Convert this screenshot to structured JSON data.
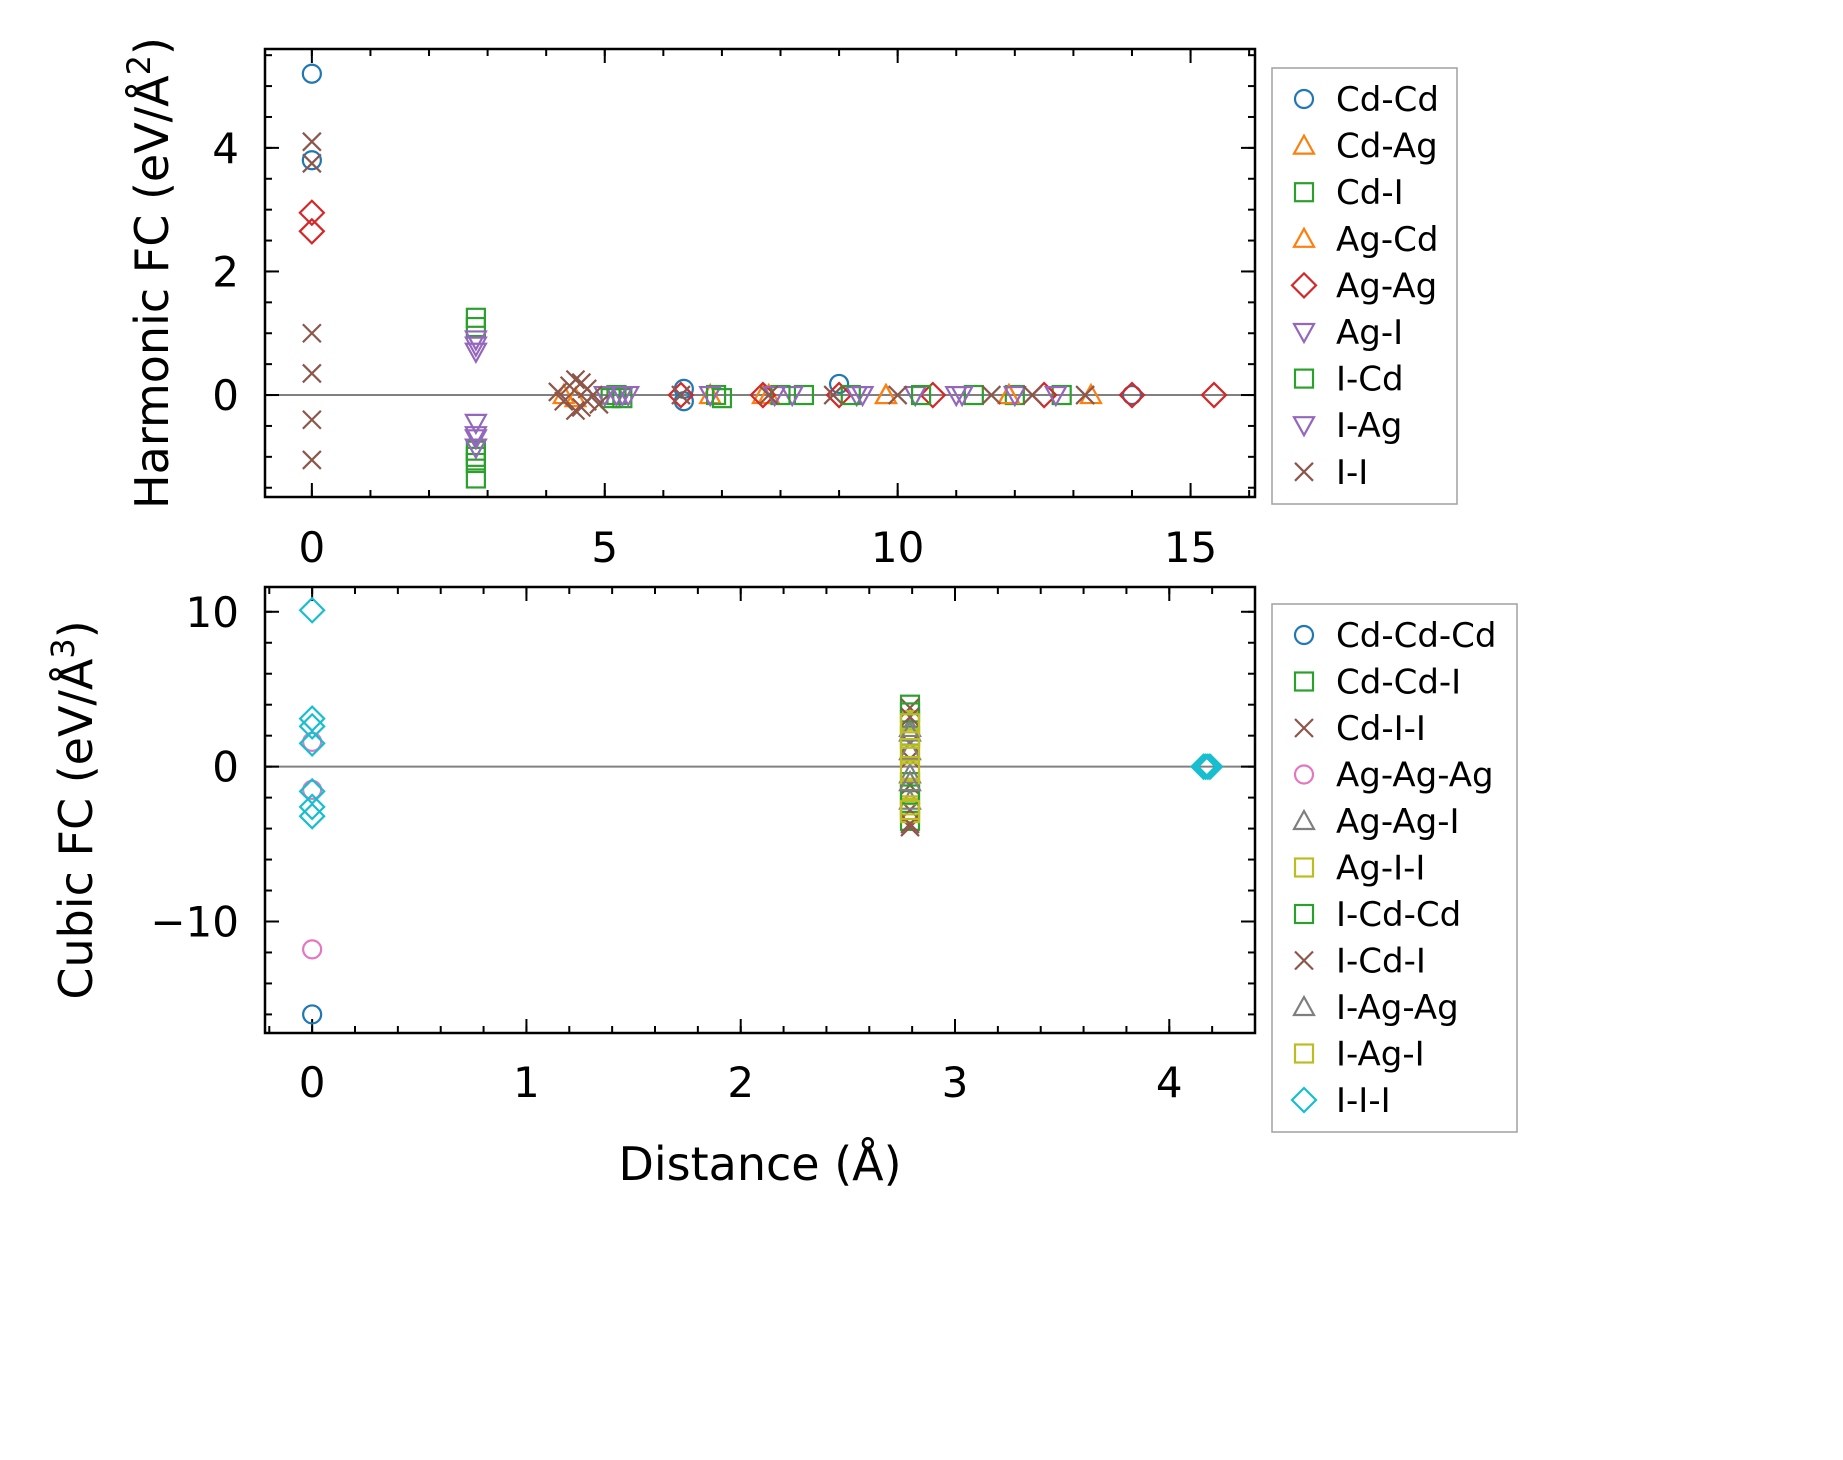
{
  "chart_data": [
    {
      "type": "scatter",
      "ylabel_main": "Harmonic FC (eV/Å",
      "ylabel_sup": "2",
      "ylabel_close": ")",
      "xlim": [
        -0.8,
        16.1
      ],
      "ylim": [
        -1.65,
        5.6
      ],
      "xticks": [
        0,
        5,
        10,
        15
      ],
      "xtick_labels": [
        "0",
        "5",
        "10",
        "15"
      ],
      "yticks": [
        0,
        2,
        4
      ],
      "ytick_labels": [
        "0",
        "2",
        "4"
      ],
      "legend_position": "outside-right-top",
      "zero_line": true,
      "series": [
        {
          "name": "Cd-Cd",
          "marker": "circle",
          "color": "#1f77b4",
          "points": [
            [
              0,
              5.2
            ],
            [
              0,
              3.8
            ],
            [
              6.35,
              0.1
            ],
            [
              6.35,
              -0.1
            ],
            [
              9.0,
              0.18
            ],
            [
              14.0,
              0.0
            ]
          ]
        },
        {
          "name": "Cd-Ag",
          "marker": "triangle-up",
          "color": "#ff7f0e",
          "points": [
            [
              4.3,
              0.0
            ],
            [
              6.8,
              0.0
            ],
            [
              7.8,
              0.0
            ],
            [
              9.8,
              0.0
            ],
            [
              11.9,
              0.0
            ],
            [
              13.3,
              0.0
            ]
          ]
        },
        {
          "name": "Cd-I",
          "marker": "square",
          "color": "#2ca02c",
          "points": [
            [
              2.8,
              1.25
            ],
            [
              2.8,
              1.1
            ],
            [
              2.8,
              -0.9
            ],
            [
              2.8,
              -1.1
            ],
            [
              2.8,
              -1.35
            ],
            [
              5.2,
              0.0
            ],
            [
              5.3,
              -0.05
            ],
            [
              6.9,
              0.0
            ],
            [
              8.4,
              0.0
            ],
            [
              11.3,
              0.0
            ],
            [
              12.0,
              0.0
            ],
            [
              12.8,
              0.0
            ]
          ]
        },
        {
          "name": "Ag-Cd",
          "marker": "triangle-up",
          "color": "#ff7f0e",
          "points": [
            [
              4.5,
              -0.05
            ],
            [
              7.7,
              0.0
            ],
            [
              9.8,
              0.0
            ],
            [
              11.9,
              0.0
            ]
          ]
        },
        {
          "name": "Ag-Ag",
          "marker": "diamond",
          "color": "#d62728",
          "points": [
            [
              0,
              2.95
            ],
            [
              0,
              2.65
            ],
            [
              6.3,
              0.0
            ],
            [
              7.7,
              0.0
            ],
            [
              9.0,
              0.0
            ],
            [
              10.6,
              0.0
            ],
            [
              12.5,
              0.0
            ],
            [
              14.0,
              0.0
            ],
            [
              15.4,
              0.0
            ]
          ]
        },
        {
          "name": "Ag-I",
          "marker": "triangle-down",
          "color": "#9467bd",
          "points": [
            [
              2.8,
              0.9
            ],
            [
              2.8,
              0.8
            ],
            [
              2.8,
              -0.45
            ],
            [
              2.8,
              -0.65
            ],
            [
              5.2,
              0.0
            ],
            [
              5.4,
              0.0
            ],
            [
              6.8,
              0.0
            ],
            [
              8.2,
              0.0
            ],
            [
              9.3,
              0.0
            ],
            [
              10.3,
              0.0
            ],
            [
              11.0,
              0.0
            ],
            [
              12.0,
              0.0
            ]
          ]
        },
        {
          "name": "I-Cd",
          "marker": "square",
          "color": "#2ca02c",
          "points": [
            [
              2.8,
              -1.0
            ],
            [
              5.1,
              -0.05
            ],
            [
              7.0,
              -0.05
            ],
            [
              8.0,
              0.0
            ],
            [
              9.2,
              0.0
            ],
            [
              10.4,
              0.0
            ]
          ]
        },
        {
          "name": "I-Ag",
          "marker": "triangle-down",
          "color": "#9467bd",
          "points": [
            [
              2.8,
              0.7
            ],
            [
              2.8,
              -0.7
            ],
            [
              2.8,
              -0.85
            ],
            [
              5.0,
              0.0
            ],
            [
              5.3,
              0.0
            ],
            [
              7.9,
              0.0
            ],
            [
              9.4,
              0.0
            ],
            [
              11.1,
              0.0
            ],
            [
              12.7,
              0.0
            ]
          ]
        },
        {
          "name": "I-I",
          "marker": "x",
          "color": "#8c564b",
          "points": [
            [
              0,
              4.1
            ],
            [
              0,
              3.75
            ],
            [
              0,
              1.0
            ],
            [
              0,
              0.35
            ],
            [
              0,
              -0.4
            ],
            [
              0,
              -1.05
            ],
            [
              4.2,
              0.05
            ],
            [
              4.3,
              -0.1
            ],
            [
              4.4,
              0.15
            ],
            [
              4.5,
              0.25
            ],
            [
              4.5,
              -0.25
            ],
            [
              4.6,
              0.2
            ],
            [
              4.6,
              -0.2
            ],
            [
              4.7,
              0.1
            ],
            [
              4.7,
              -0.1
            ],
            [
              4.8,
              0.0
            ],
            [
              4.9,
              -0.15
            ],
            [
              6.3,
              0.0
            ],
            [
              7.8,
              0.0
            ],
            [
              8.9,
              0.0
            ],
            [
              10.0,
              0.0
            ],
            [
              11.6,
              0.0
            ],
            [
              12.3,
              0.0
            ],
            [
              13.2,
              0.0
            ]
          ]
        }
      ]
    },
    {
      "type": "scatter",
      "xlabel": "Distance (Å)",
      "ylabel_main": "Cubic FC (eV/Å",
      "ylabel_sup": "3",
      "ylabel_close": ")",
      "xlim": [
        -0.22,
        4.4
      ],
      "ylim": [
        -17.2,
        11.6
      ],
      "xticks": [
        0,
        1,
        2,
        3,
        4
      ],
      "xtick_labels": [
        "0",
        "1",
        "2",
        "3",
        "4"
      ],
      "yticks": [
        10,
        0,
        -10
      ],
      "ytick_labels": [
        "10",
        "0",
        "−10"
      ],
      "legend_position": "outside-right-top",
      "zero_line": true,
      "series": [
        {
          "name": "Cd-Cd-Cd",
          "marker": "circle",
          "color": "#1f77b4",
          "points": [
            [
              0,
              -16.0
            ],
            [
              4.17,
              0.0
            ]
          ]
        },
        {
          "name": "Cd-Cd-I",
          "marker": "square",
          "color": "#2ca02c",
          "points": [
            [
              2.79,
              4.0
            ],
            [
              2.79,
              2.0
            ],
            [
              2.79,
              -1.0
            ],
            [
              2.79,
              -3.5
            ]
          ]
        },
        {
          "name": "Cd-I-I",
          "marker": "x",
          "color": "#8c564b",
          "points": [
            [
              2.79,
              3.8
            ],
            [
              2.79,
              1.5
            ],
            [
              2.79,
              0.5
            ],
            [
              2.79,
              -1.2
            ],
            [
              2.79,
              -2.8
            ],
            [
              2.79,
              -3.9
            ]
          ]
        },
        {
          "name": "Ag-Ag-Ag",
          "marker": "circle",
          "color": "#e377c2",
          "points": [
            [
              0,
              1.6
            ],
            [
              0,
              -1.5
            ],
            [
              0,
              -11.8
            ]
          ]
        },
        {
          "name": "Ag-Ag-I",
          "marker": "triangle-up",
          "color": "#7f7f7f",
          "points": [
            [
              2.79,
              2.5
            ],
            [
              2.79,
              1.0
            ],
            [
              2.79,
              -0.5
            ],
            [
              2.79,
              -2.2
            ]
          ]
        },
        {
          "name": "Ag-I-I",
          "marker": "square",
          "color": "#bcbd22",
          "points": [
            [
              2.79,
              3.0
            ],
            [
              2.79,
              1.8
            ],
            [
              2.79,
              0.8
            ],
            [
              2.79,
              -0.2
            ],
            [
              2.79,
              -1.5
            ],
            [
              2.79,
              -2.5
            ],
            [
              2.79,
              -3.0
            ]
          ]
        },
        {
          "name": "I-Cd-Cd",
          "marker": "square",
          "color": "#2ca02c",
          "points": [
            [
              2.79,
              3.5
            ],
            [
              2.79,
              -1.8
            ]
          ]
        },
        {
          "name": "I-Cd-I",
          "marker": "x",
          "color": "#8c564b",
          "points": [
            [
              2.79,
              3.2
            ],
            [
              2.79,
              -3.7
            ]
          ]
        },
        {
          "name": "I-Ag-Ag",
          "marker": "triangle-up",
          "color": "#7f7f7f",
          "points": [
            [
              2.79,
              2.2
            ],
            [
              2.79,
              -1.0
            ]
          ]
        },
        {
          "name": "I-Ag-I",
          "marker": "square",
          "color": "#bcbd22",
          "points": [
            [
              2.79,
              2.8
            ],
            [
              2.79,
              1.2
            ],
            [
              2.79,
              -2.8
            ]
          ]
        },
        {
          "name": "I-I-I",
          "marker": "diamond",
          "color": "#17becf",
          "points": [
            [
              0,
              10.1
            ],
            [
              0,
              3.1
            ],
            [
              0,
              2.6
            ],
            [
              0,
              1.5
            ],
            [
              0,
              -1.6
            ],
            [
              0,
              -2.6
            ],
            [
              0,
              -3.2
            ],
            [
              4.16,
              0.0
            ],
            [
              4.17,
              0.0
            ],
            [
              4.18,
              0.0
            ],
            [
              4.19,
              0.0
            ]
          ]
        }
      ]
    }
  ]
}
